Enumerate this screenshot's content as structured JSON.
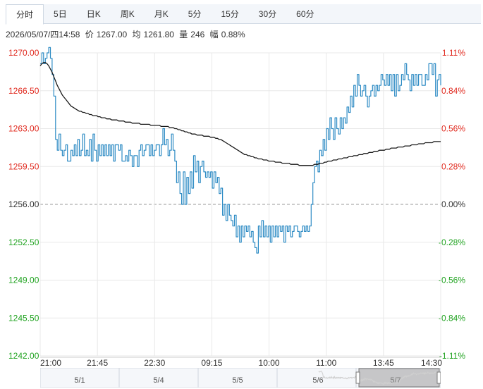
{
  "tabs": [
    {
      "label": "分时",
      "active": true
    },
    {
      "label": "5日",
      "active": false
    },
    {
      "label": "日K",
      "active": false
    },
    {
      "label": "周K",
      "active": false
    },
    {
      "label": "月K",
      "active": false
    },
    {
      "label": "5分",
      "active": false
    },
    {
      "label": "15分",
      "active": false
    },
    {
      "label": "30分",
      "active": false
    },
    {
      "label": "60分",
      "active": false
    }
  ],
  "info": {
    "datetime": "2026/05/07/四14:58",
    "price_label": "价",
    "price": "1267.00",
    "avg_label": "均",
    "avg": "1261.80",
    "volume_label": "量",
    "volume": "246",
    "amp_label": "幅",
    "amp": "0.88%"
  },
  "colors": {
    "up": "#e0291e",
    "down": "#21a321",
    "neutral": "#333333",
    "price_line": "#2d8bc4",
    "avg_line": "#1a1a1a",
    "grid": "#e8e8e8",
    "baseline": "#999999"
  },
  "chart_data": {
    "type": "line",
    "title": "",
    "xlabel": "",
    "ylabel": "",
    "ylim": [
      1242.0,
      1270.0
    ],
    "baseline": 1256.0,
    "grid": true,
    "y_ticks": [
      "1270.00",
      "1266.50",
      "1263.00",
      "1259.50",
      "1256.00",
      "1252.50",
      "1249.00",
      "1245.50",
      "1242.00"
    ],
    "pct_ticks": [
      "1.11%",
      "0.84%",
      "0.56%",
      "0.28%",
      "0.00%",
      "-0.28%",
      "-0.56%",
      "-0.84%",
      "-1.11%"
    ],
    "x_ticks": [
      "21:00",
      "21:45",
      "22:30",
      "09:15",
      "10:00",
      "11:00",
      "13:45",
      "14:30"
    ],
    "series": [
      {
        "key": "price",
        "values": [
          1269.0,
          1270.0,
          1269.0,
          1269.5,
          1270.0,
          1270.5,
          1269.5,
          1268.0,
          1266.0,
          1262.0,
          1261.0,
          1262.5,
          1261.0,
          1260.5,
          1261.0,
          1261.5,
          1260.0,
          1260.0,
          1261.0,
          1260.5,
          1261.5,
          1260.5,
          1262.0,
          1260.5,
          1261.0,
          1262.5,
          1260.5,
          1261.0,
          1260.5,
          1262.0,
          1260.0,
          1262.5,
          1261.0,
          1260.0,
          1261.5,
          1260.5,
          1261.5,
          1260.5,
          1261.5,
          1260.5,
          1261.5,
          1260.5,
          1261.5,
          1260.0,
          1261.5,
          1261.5,
          1261.0,
          1261.5,
          1260.0,
          1260.0,
          1260.5,
          1260.0,
          1261.0,
          1260.5,
          1259.5,
          1260.5,
          1260.5,
          1259.5,
          1261.0,
          1261.5,
          1260.5,
          1261.0,
          1261.5,
          1261.5,
          1260.5,
          1261.5,
          1260.5,
          1261.0,
          1261.5,
          1261.5,
          1260.5,
          1261.5,
          1263.0,
          1261.5,
          1262.0,
          1260.5,
          1261.0,
          1262.5,
          1261.0,
          1260.0,
          1258.0,
          1259.0,
          1257.0,
          1256.0,
          1259.0,
          1256.0,
          1258.5,
          1257.0,
          1259.0,
          1257.5,
          1260.5,
          1259.0,
          1260.0,
          1258.0,
          1259.5,
          1260.0,
          1259.0,
          1258.5,
          1259.0,
          1258.5,
          1259.0,
          1257.5,
          1259.0,
          1258.0,
          1258.5,
          1257.0,
          1257.5,
          1255.0,
          1256.0,
          1254.5,
          1256.0,
          1255.0,
          1254.5,
          1254.0,
          1255.0,
          1253.0,
          1254.0,
          1252.5,
          1254.0,
          1253.0,
          1254.0,
          1253.5,
          1254.0,
          1253.0,
          1253.5,
          1252.5,
          1252.0,
          1251.5,
          1254.0,
          1253.0,
          1254.5,
          1253.0,
          1254.0,
          1253.0,
          1254.0,
          1252.5,
          1254.0,
          1253.0,
          1254.0,
          1253.0,
          1254.0,
          1253.5,
          1254.0,
          1252.5,
          1254.0,
          1253.5,
          1254.0,
          1253.0,
          1253.5,
          1254.0,
          1254.0,
          1253.5,
          1253.0,
          1253.5,
          1254.0,
          1253.5,
          1254.0,
          1253.5,
          1254.0,
          1256.0,
          1258.0,
          1259.5,
          1260.0,
          1259.0,
          1261.0,
          1260.5,
          1262.0,
          1261.0,
          1263.0,
          1262.0,
          1264.0,
          1263.0,
          1262.0,
          1264.0,
          1263.0,
          1262.5,
          1264.0,
          1263.0,
          1264.0,
          1263.5,
          1265.0,
          1264.5,
          1266.0,
          1265.0,
          1267.0,
          1266.0,
          1268.0,
          1267.0,
          1266.0,
          1266.5,
          1267.0,
          1266.0,
          1265.0,
          1266.0,
          1266.5,
          1267.0,
          1266.0,
          1267.0,
          1266.5,
          1267.0,
          1268.0,
          1267.5,
          1267.0,
          1268.0,
          1267.0,
          1268.0,
          1266.5,
          1268.0,
          1266.0,
          1268.0,
          1266.5,
          1267.0,
          1268.0,
          1267.5,
          1269.0,
          1268.0,
          1267.5,
          1266.5,
          1268.0,
          1267.0,
          1268.0,
          1267.0,
          1268.0,
          1268.0,
          1267.0,
          1267.0,
          1268.0,
          1267.5,
          1269.0,
          1269.0,
          1268.0,
          1269.0,
          1266.0,
          1267.5,
          1268.0,
          1267.0
        ]
      },
      {
        "key": "average",
        "values": [
          1268.8,
          1269.0,
          1269.1,
          1269.1,
          1269.0,
          1268.8,
          1268.5,
          1268.2,
          1267.8,
          1267.4,
          1267.0,
          1266.7,
          1266.4,
          1266.1,
          1265.9,
          1265.7,
          1265.5,
          1265.3,
          1265.1,
          1265.0,
          1264.9,
          1264.8,
          1264.7,
          1264.6,
          1264.6,
          1264.5,
          1264.5,
          1264.4,
          1264.4,
          1264.3,
          1264.3,
          1264.2,
          1264.2,
          1264.2,
          1264.1,
          1264.1,
          1264.0,
          1264.0,
          1264.0,
          1263.9,
          1263.9,
          1263.9,
          1263.8,
          1263.8,
          1263.8,
          1263.8,
          1263.7,
          1263.7,
          1263.7,
          1263.7,
          1263.6,
          1263.6,
          1263.6,
          1263.6,
          1263.5,
          1263.5,
          1263.5,
          1263.5,
          1263.5,
          1263.4,
          1263.4,
          1263.4,
          1263.4,
          1263.4,
          1263.4,
          1263.3,
          1263.3,
          1263.3,
          1263.3,
          1263.3,
          1263.3,
          1263.2,
          1263.2,
          1263.2,
          1263.2,
          1263.2,
          1263.1,
          1263.1,
          1263.1,
          1263.0,
          1263.0,
          1262.9,
          1262.9,
          1262.8,
          1262.8,
          1262.7,
          1262.7,
          1262.6,
          1262.6,
          1262.5,
          1262.5,
          1262.5,
          1262.4,
          1262.4,
          1262.4,
          1262.4,
          1262.3,
          1262.3,
          1262.3,
          1262.3,
          1262.2,
          1262.2,
          1262.2,
          1262.1,
          1262.1,
          1262.0,
          1262.0,
          1261.9,
          1261.8,
          1261.7,
          1261.6,
          1261.5,
          1261.4,
          1261.3,
          1261.2,
          1261.1,
          1261.0,
          1260.9,
          1260.8,
          1260.7,
          1260.6,
          1260.6,
          1260.5,
          1260.5,
          1260.4,
          1260.4,
          1260.3,
          1260.3,
          1260.2,
          1260.2,
          1260.2,
          1260.1,
          1260.1,
          1260.1,
          1260.0,
          1260.0,
          1260.0,
          1260.0,
          1259.9,
          1259.9,
          1259.9,
          1259.9,
          1259.8,
          1259.8,
          1259.8,
          1259.8,
          1259.8,
          1259.7,
          1259.7,
          1259.7,
          1259.7,
          1259.7,
          1259.6,
          1259.6,
          1259.6,
          1259.6,
          1259.6,
          1259.6,
          1259.6,
          1259.6,
          1259.6,
          1259.7,
          1259.7,
          1259.7,
          1259.8,
          1259.8,
          1259.8,
          1259.9,
          1259.9,
          1260.0,
          1260.0,
          1260.0,
          1260.1,
          1260.1,
          1260.1,
          1260.2,
          1260.2,
          1260.2,
          1260.3,
          1260.3,
          1260.3,
          1260.4,
          1260.4,
          1260.4,
          1260.5,
          1260.5,
          1260.5,
          1260.6,
          1260.6,
          1260.6,
          1260.7,
          1260.7,
          1260.7,
          1260.8,
          1260.8,
          1260.8,
          1260.9,
          1260.9,
          1260.9,
          1261.0,
          1261.0,
          1261.0,
          1261.0,
          1261.1,
          1261.1,
          1261.1,
          1261.2,
          1261.2,
          1261.2,
          1261.2,
          1261.3,
          1261.3,
          1261.3,
          1261.3,
          1261.4,
          1261.4,
          1261.4,
          1261.4,
          1261.5,
          1261.5,
          1261.5,
          1261.5,
          1261.6,
          1261.6,
          1261.6,
          1261.6,
          1261.7,
          1261.7,
          1261.7,
          1261.7,
          1261.7,
          1261.8,
          1261.8,
          1261.8,
          1261.8,
          1261.8
        ]
      }
    ]
  },
  "navigator": {
    "labels": [
      "5/1",
      "5/4",
      "5/5",
      "5/6",
      "5/7"
    ]
  }
}
